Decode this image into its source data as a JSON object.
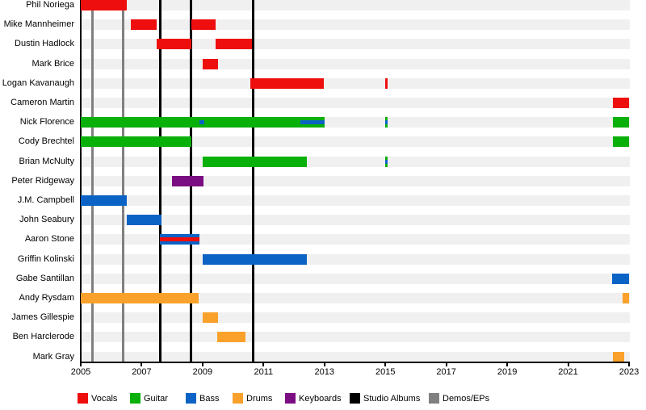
{
  "chart_data": {
    "type": "gantt",
    "subtype": "band-member-timeline",
    "title": "",
    "x_axis": {
      "min": 2005,
      "max": 2023,
      "tick_labels": [
        "2005",
        "2007",
        "2009",
        "2011",
        "2013",
        "2015",
        "2017",
        "2019",
        "2021",
        "2023"
      ]
    },
    "colors": {
      "vocals": "#ee0e0e",
      "guitar": "#09b009",
      "bass": "#0b63c5",
      "drums": "#f9a12b",
      "keyboards": "#7a0d82",
      "studio_albums": "#000000",
      "demos_eps": "#808080"
    },
    "legend": [
      {
        "label": "Vocals",
        "role": "vocals",
        "color": "#ee0e0e"
      },
      {
        "label": "Guitar",
        "role": "guitar",
        "color": "#09b009"
      },
      {
        "label": "Bass",
        "role": "bass",
        "color": "#0b63c5"
      },
      {
        "label": "Drums",
        "role": "drums",
        "color": "#f9a12b"
      },
      {
        "label": "Keyboards",
        "role": "keyboards",
        "color": "#7a0d82"
      },
      {
        "label": "Studio Albums",
        "role": "studio_albums",
        "color": "#000000"
      },
      {
        "label": "Demos/EPs",
        "role": "demos_eps",
        "color": "#808080"
      }
    ],
    "event_lines": [
      {
        "type": "demos_eps",
        "year": 2005.38
      },
      {
        "type": "demos_eps",
        "year": 2006.4
      },
      {
        "type": "studio_albums",
        "year": 2007.6
      },
      {
        "type": "studio_albums",
        "year": 2008.63
      },
      {
        "type": "studio_albums",
        "year": 2010.65
      }
    ],
    "members": [
      {
        "name": "Phil Noriega",
        "bars": [
          {
            "role": "vocals",
            "start": 2005.0,
            "end": 2006.5
          }
        ]
      },
      {
        "name": "Mike Mannheimer",
        "bars": [
          {
            "role": "vocals",
            "start": 2006.65,
            "end": 2007.5
          },
          {
            "role": "vocals",
            "start": 2008.63,
            "end": 2009.43
          }
        ]
      },
      {
        "name": "Dustin Hadlock",
        "bars": [
          {
            "role": "vocals",
            "start": 2007.5,
            "end": 2008.63
          },
          {
            "role": "vocals",
            "start": 2009.43,
            "end": 2010.62
          }
        ]
      },
      {
        "name": "Mark Brice",
        "bars": [
          {
            "role": "vocals",
            "start": 2009.0,
            "end": 2009.5
          }
        ]
      },
      {
        "name": "Logan Kavanaugh",
        "bars": [
          {
            "role": "vocals",
            "start": 2010.57,
            "end": 2012.97
          },
          {
            "role": "vocals",
            "start": 2015.0,
            "end": 2015.08
          }
        ]
      },
      {
        "name": "Cameron Martin",
        "bars": [
          {
            "role": "vocals",
            "start": 2022.47,
            "end": 2023.0
          }
        ]
      },
      {
        "name": "Nick Florence",
        "bars": [
          {
            "role": "guitar",
            "start": 2005.0,
            "end": 2013.0,
            "overlays": [
              {
                "role": "bass",
                "start": 2008.9,
                "end": 2009.06
              },
              {
                "role": "bass",
                "start": 2012.2,
                "end": 2013.0
              }
            ]
          },
          {
            "role": "guitar",
            "start": 2015.0,
            "end": 2015.08,
            "overlays": [
              {
                "role": "bass",
                "start": 2015.0,
                "end": 2015.08
              }
            ]
          },
          {
            "role": "guitar",
            "start": 2022.47,
            "end": 2023.0
          }
        ]
      },
      {
        "name": "Cody Brechtel",
        "bars": [
          {
            "role": "guitar",
            "start": 2005.0,
            "end": 2008.63
          },
          {
            "role": "guitar",
            "start": 2022.47,
            "end": 2023.0
          }
        ]
      },
      {
        "name": "Brian McNulty",
        "bars": [
          {
            "role": "guitar",
            "start": 2009.0,
            "end": 2012.43
          },
          {
            "role": "guitar",
            "start": 2015.0,
            "end": 2015.08,
            "overlays": [
              {
                "role": "bass",
                "start": 2015.0,
                "end": 2015.08
              }
            ]
          }
        ]
      },
      {
        "name": "Peter Ridgeway",
        "bars": [
          {
            "role": "keyboards",
            "start": 2008.0,
            "end": 2009.03
          }
        ]
      },
      {
        "name": "J.M. Campbell",
        "bars": [
          {
            "role": "bass",
            "start": 2005.0,
            "end": 2006.5
          }
        ]
      },
      {
        "name": "John Seabury",
        "bars": [
          {
            "role": "bass",
            "start": 2006.5,
            "end": 2007.65
          }
        ]
      },
      {
        "name": "Aaron Stone",
        "bars": [
          {
            "role": "bass",
            "start": 2007.6,
            "end": 2008.9,
            "overlays": [
              {
                "role": "vocals",
                "start": 2007.6,
                "end": 2008.9
              }
            ]
          }
        ]
      },
      {
        "name": "Griffin Kolinski",
        "bars": [
          {
            "role": "bass",
            "start": 2009.0,
            "end": 2012.43
          }
        ]
      },
      {
        "name": "Gabe Santillan",
        "bars": [
          {
            "role": "bass",
            "start": 2022.45,
            "end": 2023.0
          }
        ]
      },
      {
        "name": "Andy Rysdam",
        "bars": [
          {
            "role": "drums",
            "start": 2005.0,
            "end": 2008.87
          },
          {
            "role": "drums",
            "start": 2022.8,
            "end": 2023.0
          }
        ]
      },
      {
        "name": "James Gillespie",
        "bars": [
          {
            "role": "drums",
            "start": 2009.0,
            "end": 2009.5
          }
        ]
      },
      {
        "name": "Ben Harclerode",
        "bars": [
          {
            "role": "drums",
            "start": 2009.48,
            "end": 2010.41
          }
        ]
      },
      {
        "name": "Mark Gray",
        "bars": [
          {
            "role": "drums",
            "start": 2022.47,
            "end": 2022.85
          }
        ]
      }
    ]
  }
}
